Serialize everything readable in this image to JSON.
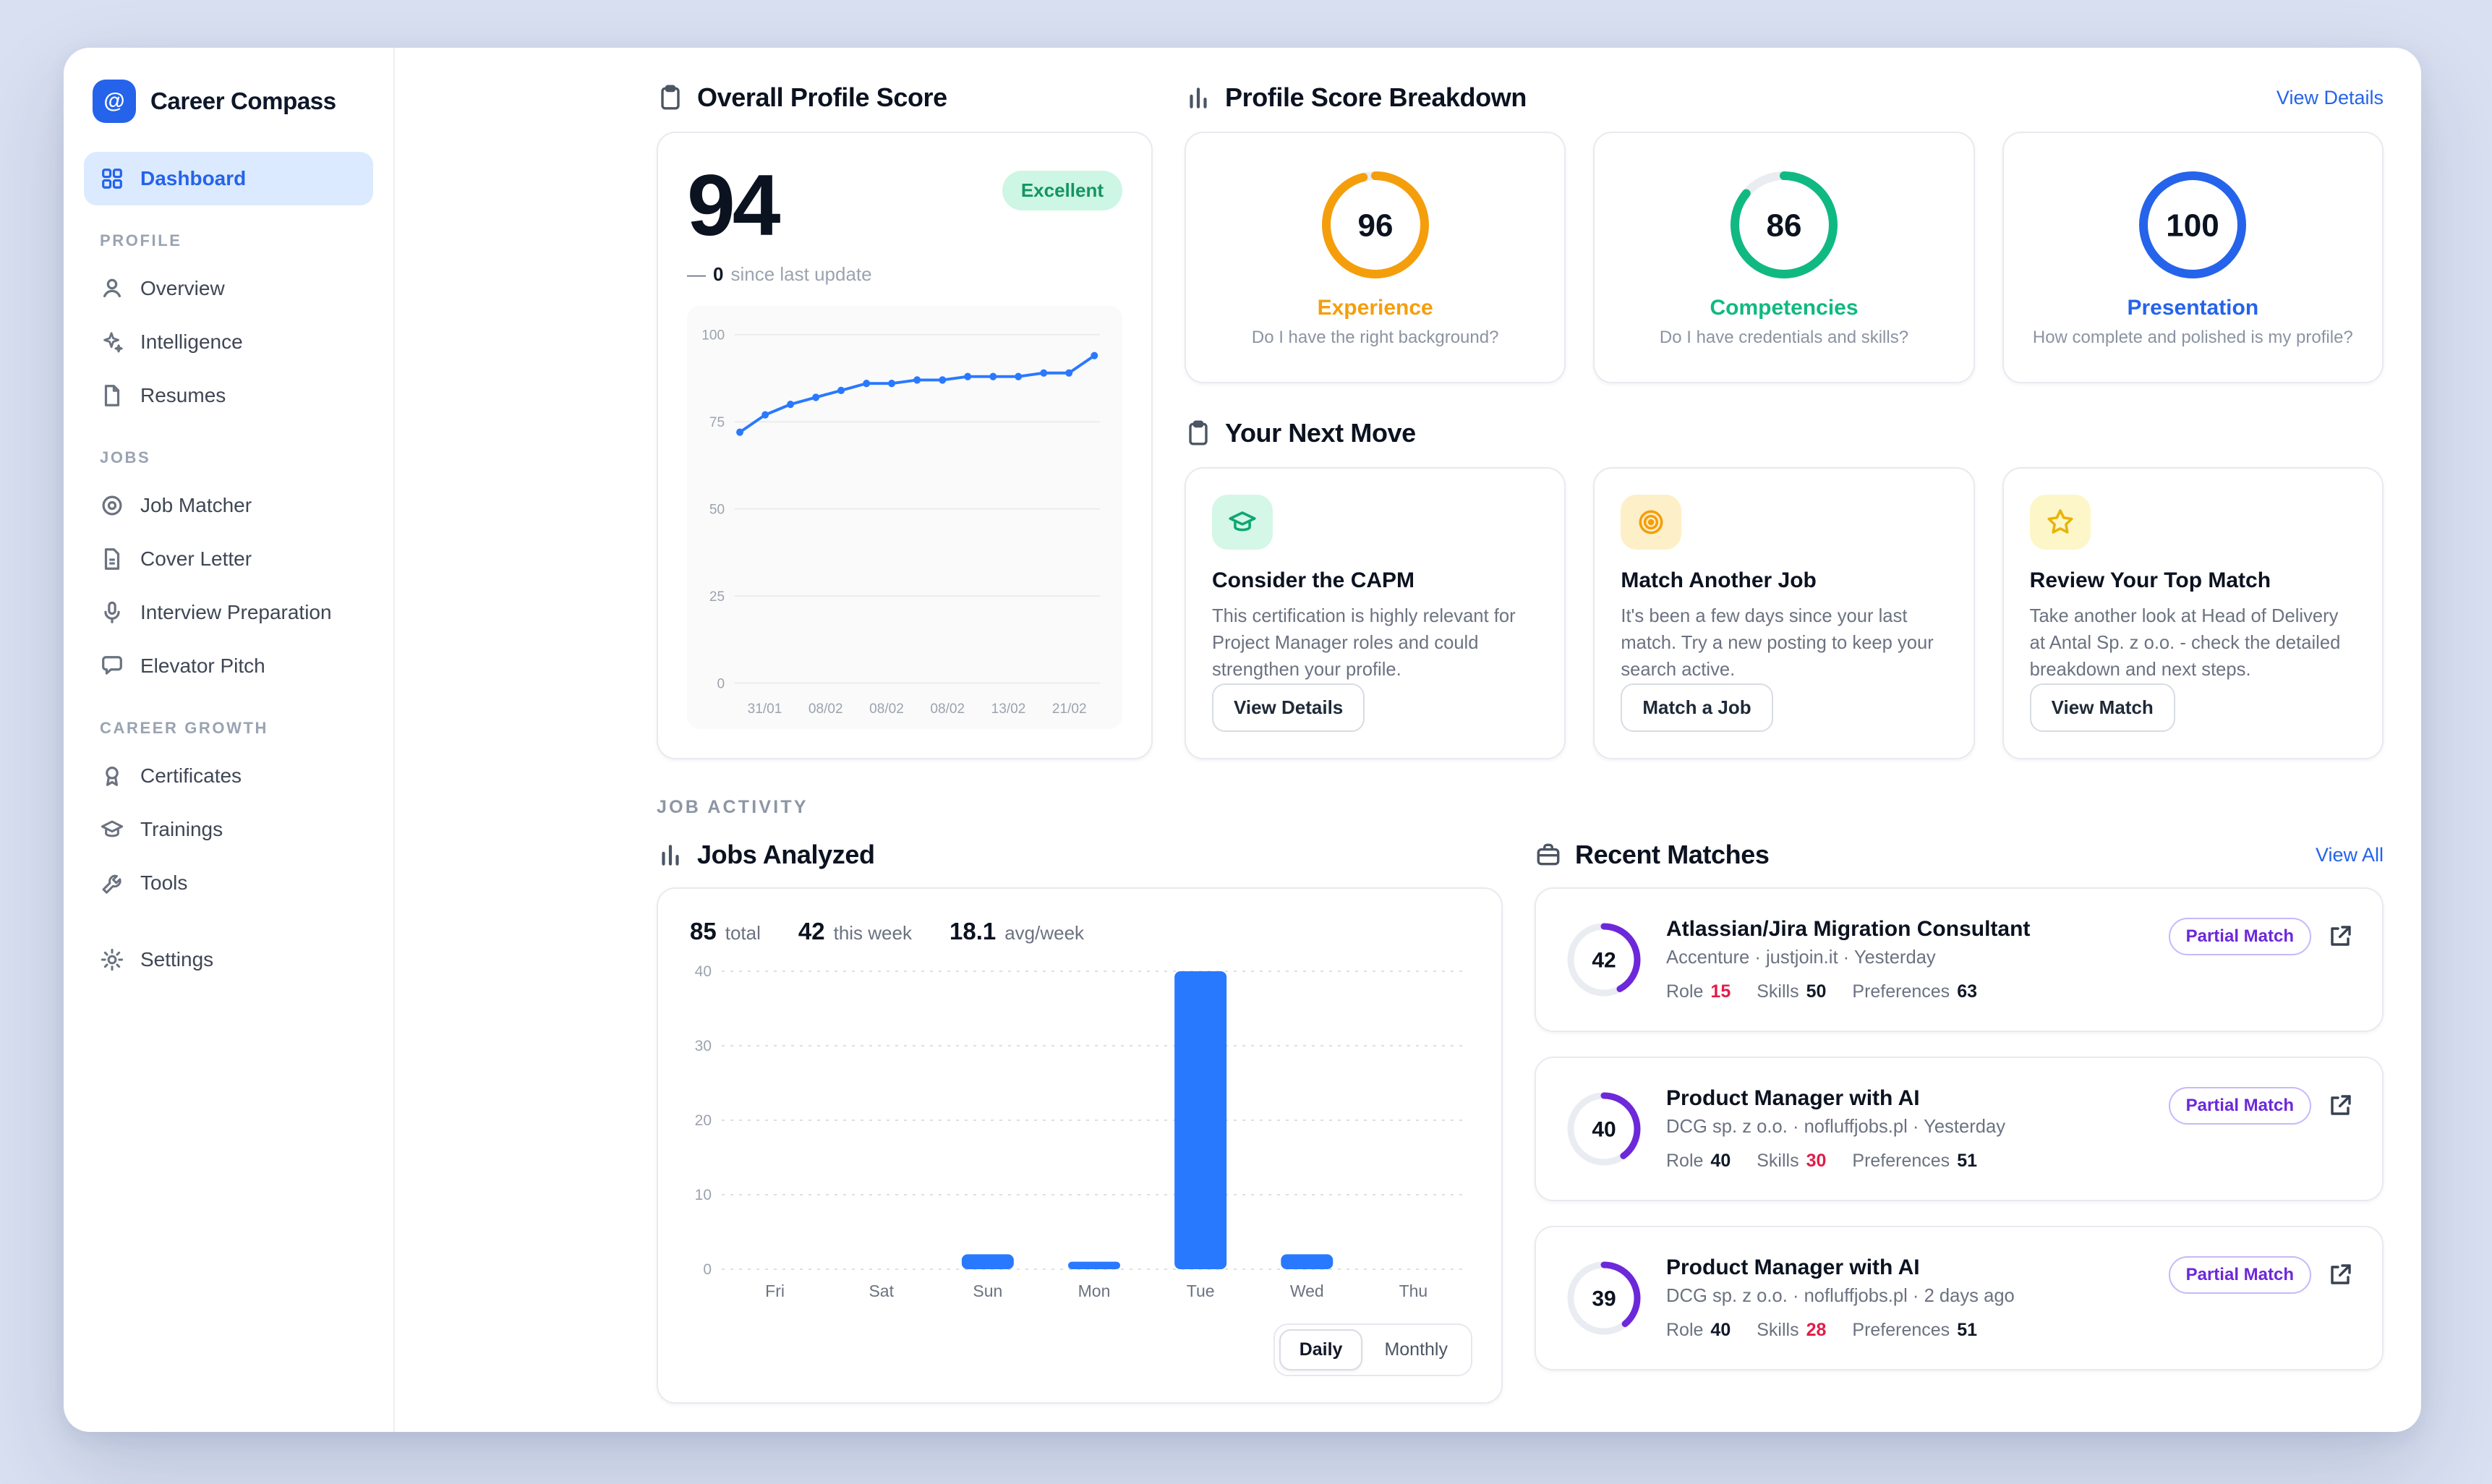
{
  "colors": {
    "accent_blue": "#2563eb",
    "chart_blue": "#2979ff",
    "experience_orange": "#f59e0b",
    "competencies_green": "#10b981",
    "presentation_blue": "#2563eb",
    "match_purple": "#6d28d9",
    "highlight_red": "#e11d48",
    "excellent_badge_bg": "#cdf6e4",
    "excellent_badge_text": "#149560"
  },
  "app": {
    "title": "Career Compass",
    "logo_glyph": "@"
  },
  "sidebar": {
    "dashboard": {
      "icon": "dashboard-grid-icon",
      "label": "Dashboard"
    },
    "sections": [
      {
        "label": "PROFILE",
        "items": [
          {
            "icon": "user-icon",
            "label": "Overview"
          },
          {
            "icon": "sparkles-icon",
            "label": "Intelligence"
          },
          {
            "icon": "document-icon",
            "label": "Resumes"
          }
        ]
      },
      {
        "label": "JOBS",
        "items": [
          {
            "icon": "target-icon",
            "label": "Job Matcher"
          },
          {
            "icon": "letter-icon",
            "label": "Cover Letter"
          },
          {
            "icon": "microphone-icon",
            "label": "Interview Preparation"
          },
          {
            "icon": "chat-bubble-icon",
            "label": "Elevator Pitch"
          }
        ]
      },
      {
        "label": "CAREER GROWTH",
        "items": [
          {
            "icon": "award-icon",
            "label": "Certificates"
          },
          {
            "icon": "graduation-cap-icon",
            "label": "Trainings"
          },
          {
            "icon": "wrench-icon",
            "label": "Tools"
          }
        ]
      }
    ],
    "settings": {
      "icon": "gear-icon",
      "label": "Settings"
    }
  },
  "overall": {
    "title": "Overall Profile Score",
    "score": "94",
    "badge": "Excellent",
    "delta_dash": "—",
    "delta_value": "0",
    "delta_label": "since last update"
  },
  "breakdown": {
    "title": "Profile Score Breakdown",
    "view_details": "View Details",
    "cards": [
      {
        "score": 96,
        "label": "Experience",
        "question": "Do I have the right background?",
        "color": "#f59e0b"
      },
      {
        "score": 86,
        "label": "Competencies",
        "question": "Do I have credentials and skills?",
        "color": "#10b981"
      },
      {
        "score": 100,
        "label": "Presentation",
        "question": "How complete and polished is my profile?",
        "color": "#2563eb"
      }
    ]
  },
  "next_move": {
    "title": "Your Next Move",
    "cards": [
      {
        "icon": "graduation-cap-icon",
        "title": "Consider the CAPM",
        "description": "This certification is highly relevant for Project Manager roles and could strengthen your profile.",
        "button": "View Details"
      },
      {
        "icon": "target-icon",
        "title": "Match Another Job",
        "description": "It's been a few days since your last match. Try a new posting to keep your search active.",
        "button": "Match a Job"
      },
      {
        "icon": "star-icon",
        "title": "Review Your Top Match",
        "description": "Take another look at Head of Delivery at Antal Sp. z o.o. - check the detailed breakdown and next steps.",
        "button": "View Match"
      }
    ]
  },
  "job_activity": {
    "label": "JOB ACTIVITY"
  },
  "jobs_analyzed": {
    "title": "Jobs Analyzed",
    "stats": [
      {
        "value": "85",
        "label": "total"
      },
      {
        "value": "42",
        "label": "this week"
      },
      {
        "value": "18.1",
        "label": "avg/week"
      }
    ],
    "toggle": {
      "daily": "Daily",
      "monthly": "Monthly",
      "active": "Daily"
    }
  },
  "recent_matches": {
    "title": "Recent Matches",
    "view_all": "View All",
    "items": [
      {
        "score": 42,
        "badge": "Partial Match",
        "title": "Atlassian/Jira Migration Consultant",
        "meta": "Accenture · justjoin.it · Yesterday",
        "stats": [
          {
            "label": "Role",
            "value": "15",
            "highlight": true
          },
          {
            "label": "Skills",
            "value": "50",
            "highlight": false
          },
          {
            "label": "Preferences",
            "value": "63",
            "highlight": false
          }
        ]
      },
      {
        "score": 40,
        "badge": "Partial Match",
        "title": "Product Manager with AI",
        "meta": "DCG sp. z o.o. · nofluffjobs.pl · Yesterday",
        "stats": [
          {
            "label": "Role",
            "value": "40",
            "highlight": false
          },
          {
            "label": "Skills",
            "value": "30",
            "highlight": true
          },
          {
            "label": "Preferences",
            "value": "51",
            "highlight": false
          }
        ]
      },
      {
        "score": 39,
        "badge": "Partial Match",
        "title": "Product Manager with AI",
        "meta": "DCG sp. z o.o. · nofluffjobs.pl · 2 days ago",
        "stats": [
          {
            "label": "Role",
            "value": "40",
            "highlight": false
          },
          {
            "label": "Skills",
            "value": "28",
            "highlight": true
          },
          {
            "label": "Preferences",
            "value": "51",
            "highlight": false
          }
        ]
      }
    ]
  },
  "chart_data": [
    {
      "type": "line",
      "title": "Overall Profile Score trend",
      "x": [
        "31/01",
        "08/02",
        "08/02",
        "08/02",
        "13/02",
        "21/02"
      ],
      "values": [
        72,
        77,
        80,
        82,
        84,
        86,
        86,
        87,
        87,
        88,
        88,
        88,
        89,
        89,
        94
      ],
      "ylim": [
        0,
        100
      ],
      "yticks": [
        0,
        25,
        50,
        75,
        100
      ],
      "color": "#2979ff",
      "grid": true,
      "legend": "none"
    },
    {
      "type": "bar",
      "title": "Jobs Analyzed (daily)",
      "categories": [
        "Fri",
        "Sat",
        "Sun",
        "Mon",
        "Tue",
        "Wed",
        "Thu"
      ],
      "values": [
        0,
        0,
        2,
        1,
        40,
        2,
        0
      ],
      "ylim": [
        0,
        40
      ],
      "yticks": [
        0,
        10,
        20,
        30,
        40
      ],
      "color": "#2979ff",
      "grid": true,
      "legend": "none"
    }
  ]
}
